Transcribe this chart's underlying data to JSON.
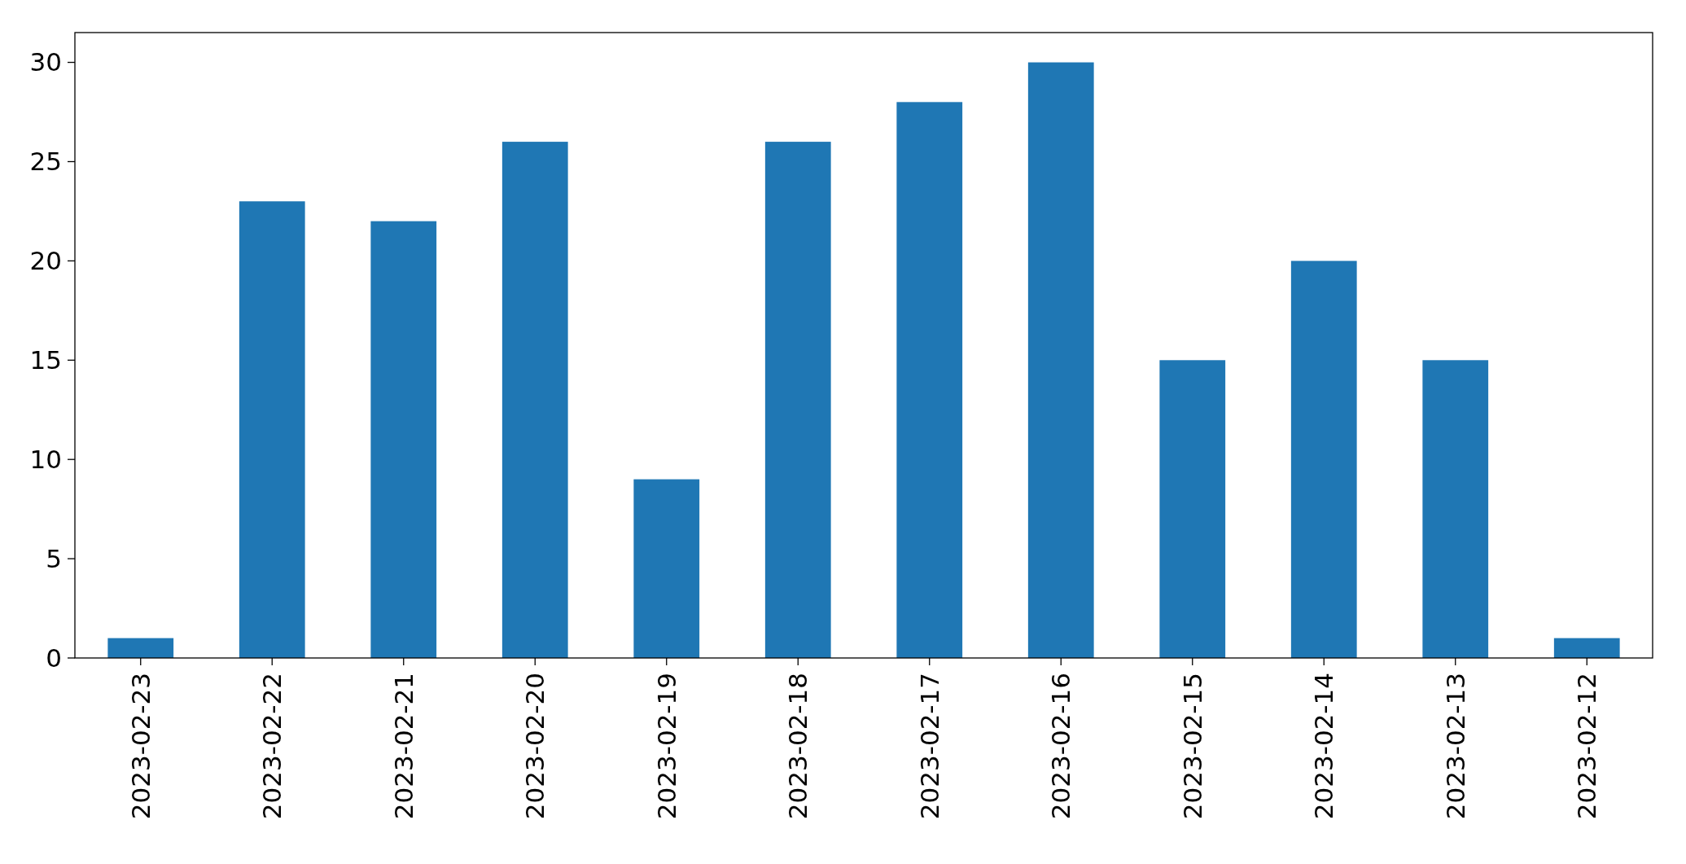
{
  "chart_data": {
    "type": "bar",
    "categories": [
      "2023-02-23",
      "2023-02-22",
      "2023-02-21",
      "2023-02-20",
      "2023-02-19",
      "2023-02-18",
      "2023-02-17",
      "2023-02-16",
      "2023-02-15",
      "2023-02-14",
      "2023-02-13",
      "2023-02-12"
    ],
    "values": [
      1,
      23,
      22,
      26,
      9,
      26,
      28,
      30,
      15,
      20,
      15,
      1
    ],
    "color": "#1f77b4",
    "ylim": [
      0,
      31.5
    ],
    "yticks": [
      0,
      5,
      10,
      15,
      20,
      25,
      30
    ],
    "grid": false
  }
}
